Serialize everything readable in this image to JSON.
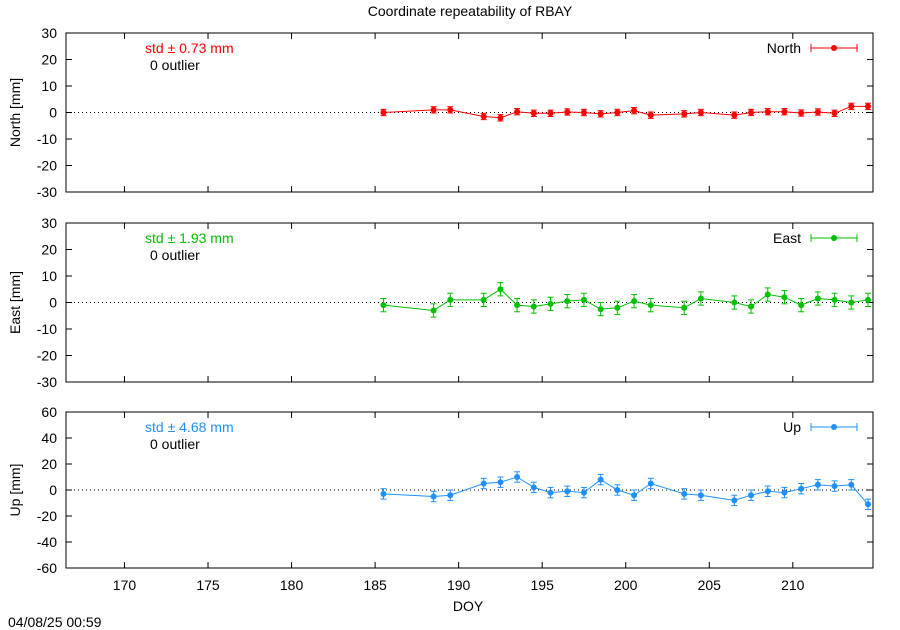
{
  "title": "Coordinate repeatability of RBAY",
  "timestamp": "04/08/25 00:59",
  "chart_data": {
    "type": "scatter",
    "xlabel": "DOY",
    "xlim": [
      166.5,
      214.8
    ],
    "xticks": [
      170,
      175,
      180,
      185,
      190,
      195,
      200,
      205,
      210
    ],
    "grid": false,
    "panels": [
      {
        "name": "North",
        "ylabel": "North [mm]",
        "ylim": [
          -30,
          30
        ],
        "yticks": [
          -30,
          -20,
          -10,
          0,
          10,
          20,
          30
        ],
        "color": "#ff0000",
        "std_label": "std ± 0.73 mm",
        "outlier_label": "0 outlier",
        "legend_position": "top-right",
        "points": [
          {
            "x": 185.5,
            "y": 0,
            "err": 1.2
          },
          {
            "x": 188.5,
            "y": 1,
            "err": 1.2
          },
          {
            "x": 189.5,
            "y": 1,
            "err": 1.2
          },
          {
            "x": 191.5,
            "y": -1.5,
            "err": 1.2
          },
          {
            "x": 192.5,
            "y": -2,
            "err": 1.2
          },
          {
            "x": 193.5,
            "y": 0.3,
            "err": 1.2
          },
          {
            "x": 194.5,
            "y": -0.3,
            "err": 1.2
          },
          {
            "x": 195.5,
            "y": -0.3,
            "err": 1.2
          },
          {
            "x": 196.5,
            "y": 0.2,
            "err": 1.2
          },
          {
            "x": 197.5,
            "y": 0,
            "err": 1.2
          },
          {
            "x": 198.5,
            "y": -0.5,
            "err": 1.2
          },
          {
            "x": 199.5,
            "y": 0,
            "err": 1.2
          },
          {
            "x": 200.5,
            "y": 0.7,
            "err": 1.2
          },
          {
            "x": 201.5,
            "y": -1,
            "err": 1.2
          },
          {
            "x": 203.5,
            "y": -0.5,
            "err": 1.2
          },
          {
            "x": 204.5,
            "y": 0,
            "err": 1.2
          },
          {
            "x": 206.5,
            "y": -1,
            "err": 1.2
          },
          {
            "x": 207.5,
            "y": 0,
            "err": 1.2
          },
          {
            "x": 208.5,
            "y": 0.3,
            "err": 1.2
          },
          {
            "x": 209.5,
            "y": 0.3,
            "err": 1.2
          },
          {
            "x": 210.5,
            "y": -0.2,
            "err": 1.2
          },
          {
            "x": 211.5,
            "y": 0.2,
            "err": 1.2
          },
          {
            "x": 212.5,
            "y": -0.3,
            "err": 1.2
          },
          {
            "x": 213.5,
            "y": 2.3,
            "err": 1.2
          },
          {
            "x": 214.5,
            "y": 2.3,
            "err": 1.2
          }
        ]
      },
      {
        "name": "East",
        "ylabel": "East [mm]",
        "ylim": [
          -30,
          30
        ],
        "yticks": [
          -30,
          -20,
          -10,
          0,
          10,
          20,
          30
        ],
        "color": "#00c000",
        "std_label": "std ± 1.93 mm",
        "outlier_label": "0 outlier",
        "legend_position": "top-right",
        "points": [
          {
            "x": 185.5,
            "y": -1,
            "err": 2.5
          },
          {
            "x": 188.5,
            "y": -3,
            "err": 2.5
          },
          {
            "x": 189.5,
            "y": 1,
            "err": 2.5
          },
          {
            "x": 191.5,
            "y": 1,
            "err": 2.5
          },
          {
            "x": 192.5,
            "y": 5,
            "err": 2.5
          },
          {
            "x": 193.5,
            "y": -1,
            "err": 2.5
          },
          {
            "x": 194.5,
            "y": -1.5,
            "err": 2.5
          },
          {
            "x": 195.5,
            "y": -0.5,
            "err": 2.5
          },
          {
            "x": 196.5,
            "y": 0.5,
            "err": 2.5
          },
          {
            "x": 197.5,
            "y": 1,
            "err": 2.5
          },
          {
            "x": 198.5,
            "y": -2.5,
            "err": 2.5
          },
          {
            "x": 199.5,
            "y": -2,
            "err": 2.5
          },
          {
            "x": 200.5,
            "y": 0.5,
            "err": 2.5
          },
          {
            "x": 201.5,
            "y": -1,
            "err": 2.5
          },
          {
            "x": 203.5,
            "y": -2,
            "err": 2.5
          },
          {
            "x": 204.5,
            "y": 1.5,
            "err": 2.5
          },
          {
            "x": 206.5,
            "y": 0,
            "err": 2.5
          },
          {
            "x": 207.5,
            "y": -1.5,
            "err": 2.5
          },
          {
            "x": 208.5,
            "y": 3,
            "err": 2.5
          },
          {
            "x": 209.5,
            "y": 2,
            "err": 2.5
          },
          {
            "x": 210.5,
            "y": -1,
            "err": 2.5
          },
          {
            "x": 211.5,
            "y": 1.5,
            "err": 2.5
          },
          {
            "x": 212.5,
            "y": 1,
            "err": 2.5
          },
          {
            "x": 213.5,
            "y": 0,
            "err": 2.5
          },
          {
            "x": 214.5,
            "y": 1,
            "err": 2.5
          }
        ]
      },
      {
        "name": "Up",
        "ylabel": "Up [mm]",
        "ylim": [
          -60,
          60
        ],
        "yticks": [
          -60,
          -40,
          -20,
          0,
          20,
          40,
          60
        ],
        "color": "#1e90ff",
        "std_label": "std ± 4.68 mm",
        "outlier_label": "0 outlier",
        "legend_position": "top-right",
        "points": [
          {
            "x": 185.5,
            "y": -3,
            "err": 4
          },
          {
            "x": 188.5,
            "y": -5,
            "err": 4
          },
          {
            "x": 189.5,
            "y": -4,
            "err": 4
          },
          {
            "x": 191.5,
            "y": 5,
            "err": 4
          },
          {
            "x": 192.5,
            "y": 6,
            "err": 4
          },
          {
            "x": 193.5,
            "y": 10,
            "err": 4
          },
          {
            "x": 194.5,
            "y": 2,
            "err": 4
          },
          {
            "x": 195.5,
            "y": -2,
            "err": 4
          },
          {
            "x": 196.5,
            "y": -1,
            "err": 4
          },
          {
            "x": 197.5,
            "y": -2,
            "err": 4
          },
          {
            "x": 198.5,
            "y": 8,
            "err": 4
          },
          {
            "x": 199.5,
            "y": 0,
            "err": 4
          },
          {
            "x": 200.5,
            "y": -4,
            "err": 4
          },
          {
            "x": 201.5,
            "y": 5,
            "err": 4
          },
          {
            "x": 203.5,
            "y": -3,
            "err": 4
          },
          {
            "x": 204.5,
            "y": -4,
            "err": 4
          },
          {
            "x": 206.5,
            "y": -8,
            "err": 4
          },
          {
            "x": 207.5,
            "y": -4,
            "err": 4
          },
          {
            "x": 208.5,
            "y": -1,
            "err": 4
          },
          {
            "x": 209.5,
            "y": -2,
            "err": 4
          },
          {
            "x": 210.5,
            "y": 1,
            "err": 4
          },
          {
            "x": 211.5,
            "y": 4,
            "err": 4
          },
          {
            "x": 212.5,
            "y": 3,
            "err": 4
          },
          {
            "x": 213.5,
            "y": 4,
            "err": 4
          },
          {
            "x": 214.5,
            "y": -11,
            "err": 4
          }
        ]
      }
    ]
  }
}
